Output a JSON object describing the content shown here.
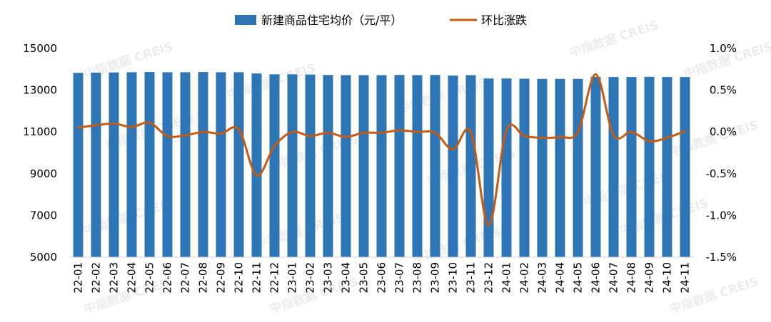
{
  "chart_data": {
    "type": "bar",
    "categories": [
      "22-01",
      "22-02",
      "22-03",
      "22-04",
      "22-05",
      "22-06",
      "22-07",
      "22-08",
      "22-09",
      "22-10",
      "22-11",
      "22-12",
      "23-01",
      "23-02",
      "23-03",
      "23-04",
      "23-05",
      "23-06",
      "23-07",
      "23-08",
      "23-09",
      "23-10",
      "23-11",
      "23-12",
      "24-01",
      "24-02",
      "24-03",
      "24-04",
      "24-05",
      "24-06",
      "24-07",
      "24-08",
      "24-09",
      "24-10",
      "24-11"
    ],
    "series": [
      {
        "name": "新建商品住宅均价（元/平）",
        "type": "bar",
        "axis": "left",
        "color": "#2e75b6",
        "values": [
          13830,
          13840,
          13850,
          13860,
          13870,
          13860,
          13860,
          13870,
          13860,
          13860,
          13800,
          13760,
          13760,
          13750,
          13730,
          13720,
          13720,
          13720,
          13730,
          13720,
          13730,
          13700,
          13720,
          13560,
          13560,
          13550,
          13540,
          13540,
          13540,
          13640,
          13630,
          13630,
          13640,
          13630,
          13630
        ]
      },
      {
        "name": "环比涨跌",
        "type": "line",
        "axis": "right",
        "color": "#c55a11",
        "values": [
          0.05,
          0.08,
          0.1,
          0.06,
          0.11,
          -0.05,
          -0.04,
          0.0,
          -0.02,
          0.03,
          -0.52,
          -0.17,
          0.0,
          -0.05,
          -0.01,
          -0.06,
          -0.01,
          -0.01,
          0.02,
          0.0,
          -0.01,
          -0.21,
          0.0,
          -1.12,
          0.02,
          -0.05,
          -0.07,
          -0.06,
          0.0,
          0.69,
          -0.04,
          0.0,
          -0.11,
          -0.07,
          0.01
        ]
      }
    ],
    "y_left": {
      "min": 5000,
      "max": 15000,
      "ticks": [
        5000,
        7000,
        9000,
        11000,
        13000,
        15000
      ],
      "tick_labels": [
        "5000",
        "7000",
        "9000",
        "11000",
        "13000",
        "15000"
      ]
    },
    "y_right": {
      "min": -1.5,
      "max": 1.0,
      "ticks": [
        -1.5,
        -1.0,
        -0.5,
        0.0,
        0.5,
        1.0
      ],
      "tick_labels": [
        "-1.5%",
        "-1.0%",
        "-0.5%",
        "0.0%",
        "0.5%",
        "1.0%"
      ]
    },
    "grid": false,
    "legend_position": "top-center",
    "legend": [
      "新建商品住宅均价（元/平）",
      "环比涨跌"
    ],
    "watermark": "中指数据 CREIS"
  }
}
